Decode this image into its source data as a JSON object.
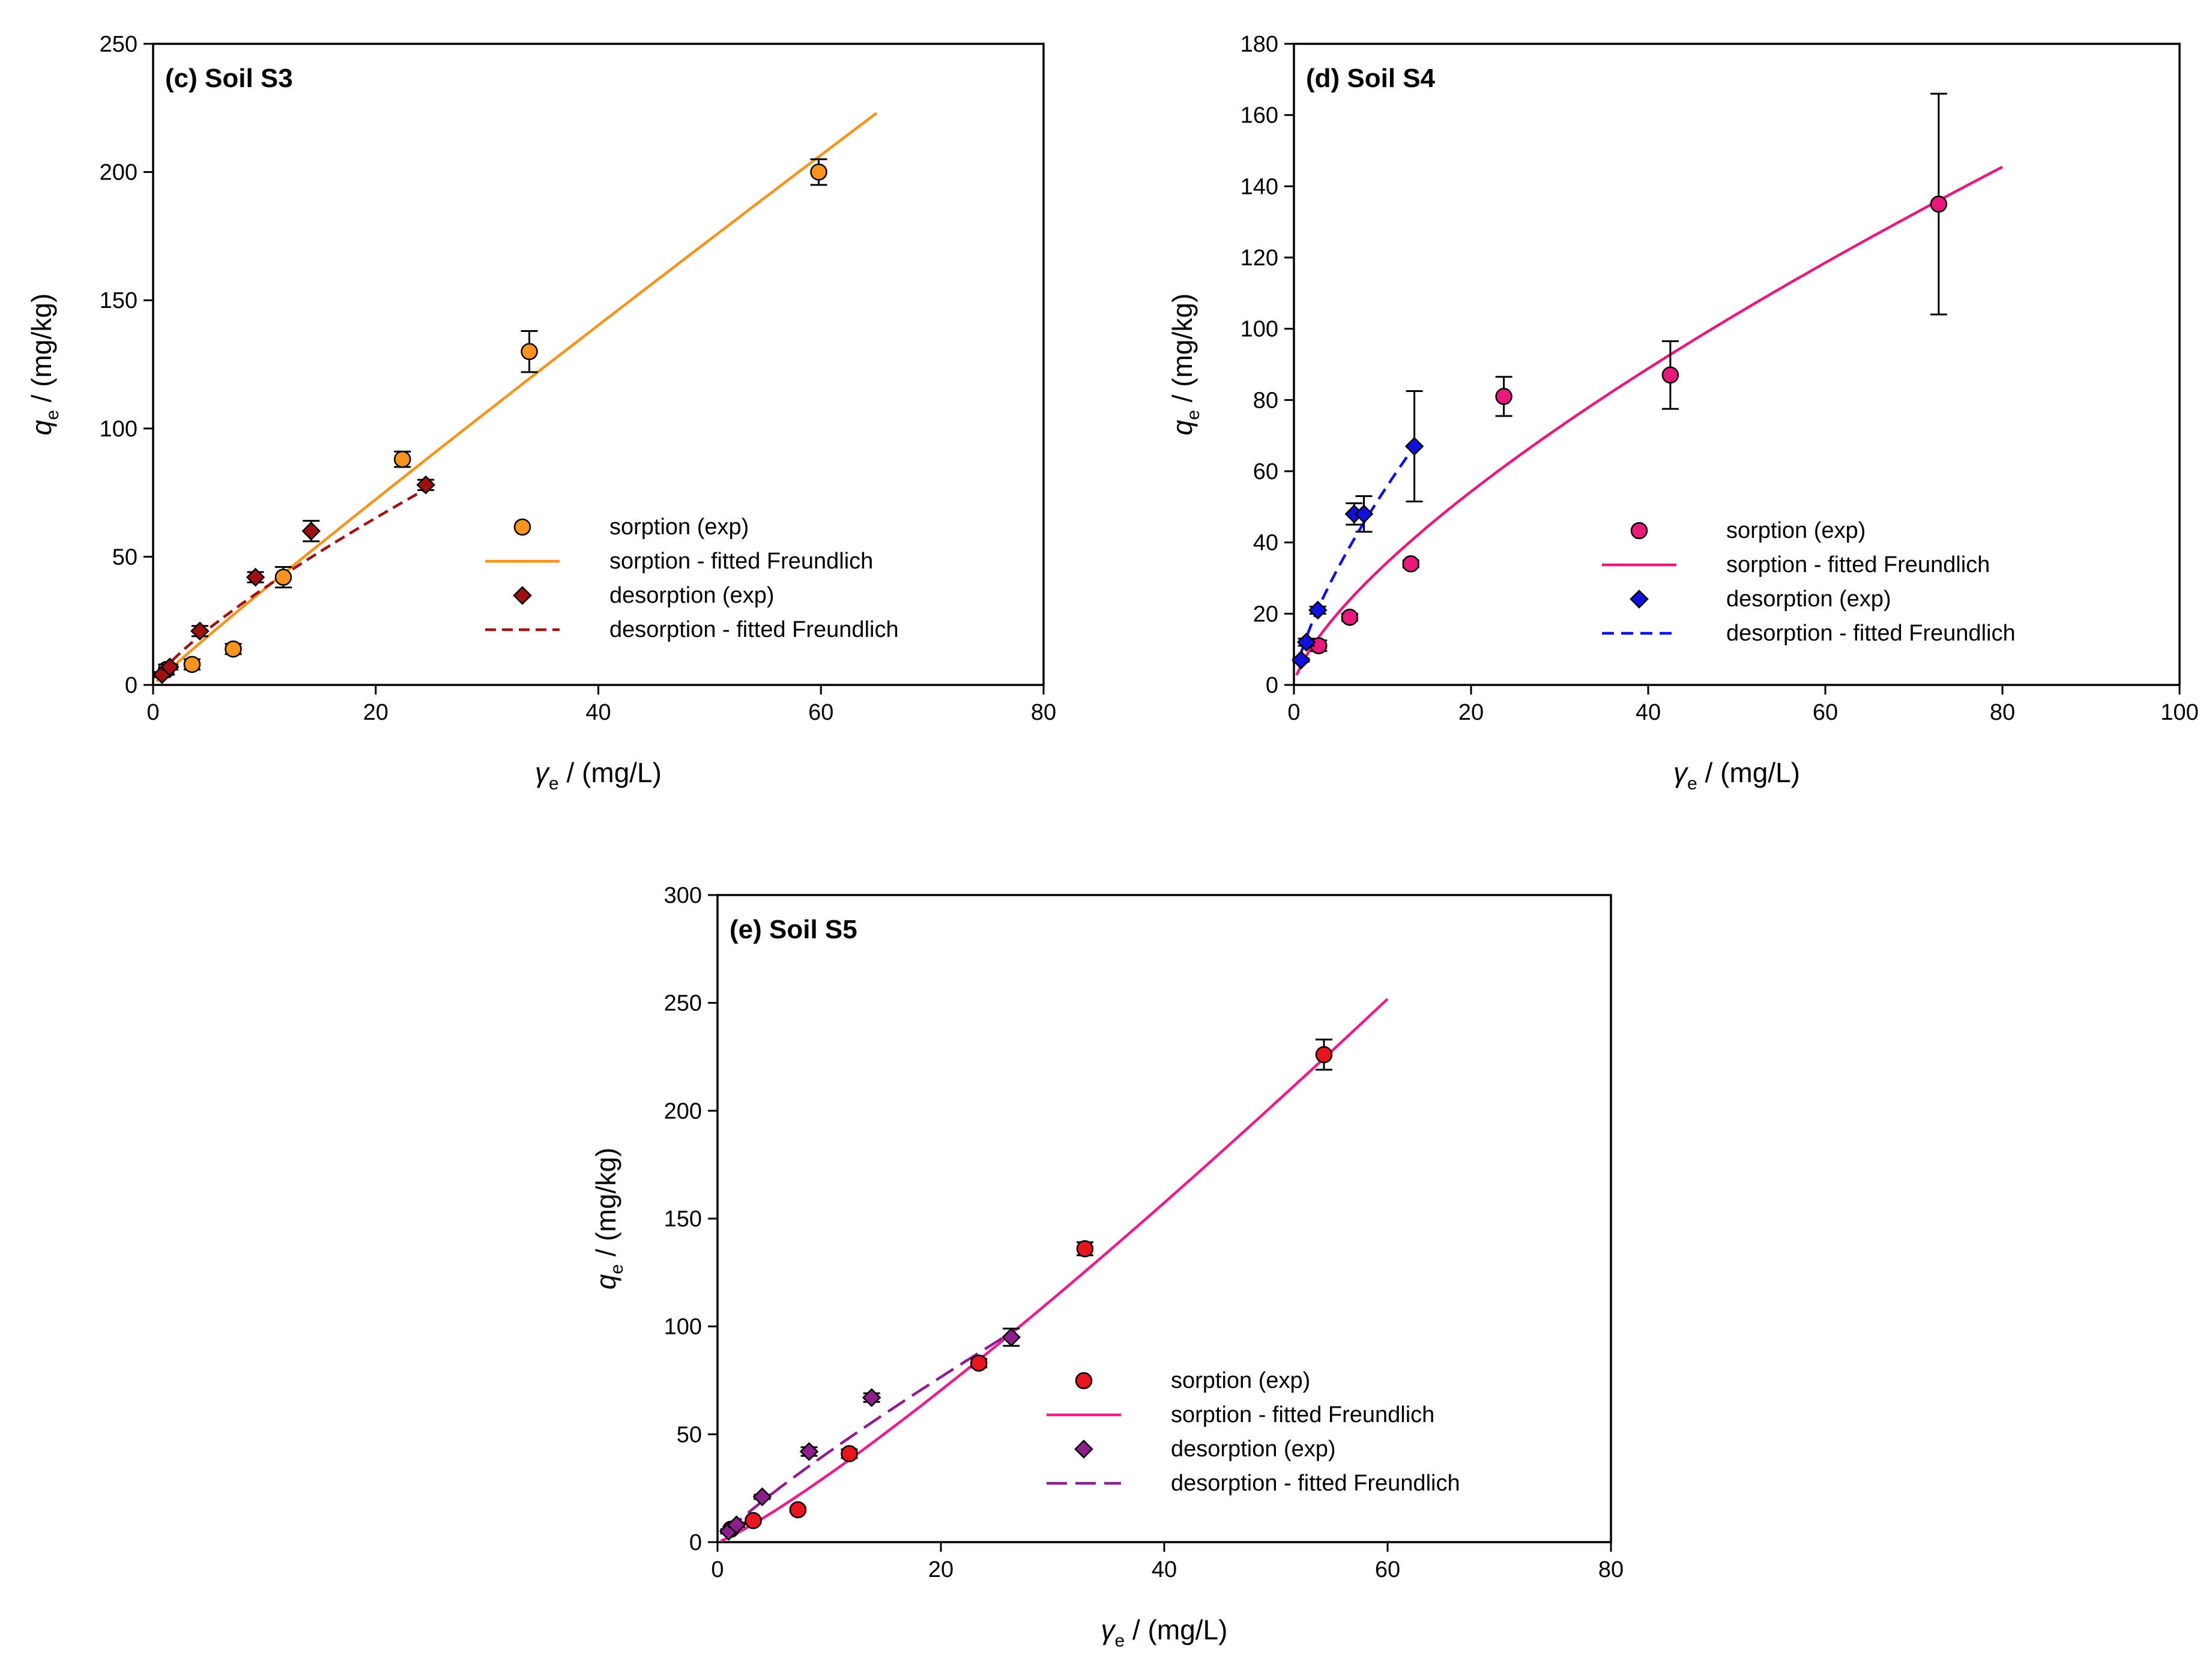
{
  "chart_data": [
    {
      "id": "s3",
      "type": "scatter",
      "title": "(c) Soil S3",
      "xlabel_symbol": "γ",
      "xlabel_sub": "e",
      "xlabel_unit": " / (mg/L)",
      "ylabel_symbol": "q",
      "ylabel_sub": "e",
      "ylabel_unit": " / (mg/kg)",
      "xlim": [
        0,
        80
      ],
      "ylim": [
        0,
        250
      ],
      "xticks": [
        0,
        20,
        40,
        60,
        80
      ],
      "yticks": [
        0,
        50,
        100,
        150,
        200,
        250
      ],
      "legend_position": "lower-right",
      "series": [
        {
          "name": "sorption (exp)",
          "kind": "points",
          "marker": "circle",
          "color": "#f7941d",
          "x": [
            1.2,
            3.5,
            7.2,
            11.7,
            22.4,
            33.8,
            59.8
          ],
          "y": [
            6,
            8,
            14,
            42,
            88,
            130,
            200
          ],
          "err": [
            2,
            2,
            2,
            4,
            3,
            8,
            5
          ]
        },
        {
          "name": "sorption - fitted Freundlich",
          "kind": "line",
          "dash": "",
          "color": "#f7941d",
          "x": [
            0.3,
            65
          ],
          "kf": 4.14,
          "n": 0.955
        },
        {
          "name": "desorption (exp)",
          "kind": "points",
          "marker": "diamond",
          "color": "#a01010",
          "x": [
            0.8,
            1.5,
            4.2,
            9.2,
            14.2,
            24.5
          ],
          "y": [
            4,
            7,
            21,
            42,
            60,
            78
          ],
          "err": [
            1,
            1,
            2,
            2,
            4,
            2
          ]
        },
        {
          "name": "desorption - fitted Freundlich",
          "kind": "line",
          "dash": "18,10",
          "color": "#a01010",
          "x": [
            0.7,
            24.5
          ],
          "kf": 6.2,
          "n": 0.785
        }
      ]
    },
    {
      "id": "s4",
      "type": "scatter",
      "title": "(d) Soil S4",
      "xlabel_symbol": "γ",
      "xlabel_sub": "e",
      "xlabel_unit": " / (mg/L)",
      "ylabel_symbol": "q",
      "ylabel_sub": "e",
      "ylabel_unit": " / (mg/kg)",
      "xlim": [
        0,
        100
      ],
      "ylim": [
        0,
        180
      ],
      "xticks": [
        0,
        20,
        40,
        60,
        80,
        100
      ],
      "yticks": [
        0,
        20,
        40,
        60,
        80,
        100,
        120,
        140,
        160,
        180
      ],
      "legend_position": "lower-right",
      "series": [
        {
          "name": "sorption (exp)",
          "kind": "points",
          "marker": "circle",
          "color": "#e8197a",
          "x": [
            2.8,
            6.3,
            13.2,
            23.7,
            42.5,
            72.8
          ],
          "y": [
            11,
            19,
            34,
            81,
            87,
            135
          ],
          "err": [
            1.5,
            1,
            1,
            5.5,
            9.5,
            31
          ]
        },
        {
          "name": "sorption - fitted Freundlich",
          "kind": "line",
          "dash": "",
          "color": "#e8197a",
          "x": [
            0.3,
            80
          ],
          "kf": 6.45,
          "n": 0.711
        },
        {
          "name": "desorption (exp)",
          "kind": "points",
          "marker": "diamond",
          "color": "#1010e0",
          "x": [
            0.8,
            1.4,
            2.7,
            6.8,
            7.9,
            13.6
          ],
          "y": [
            7,
            12,
            21,
            48,
            48,
            67
          ],
          "err": [
            0.5,
            1,
            1,
            3,
            5,
            15.5
          ]
        },
        {
          "name": "desorption - fitted Freundlich",
          "kind": "line",
          "dash": "20,12",
          "color": "#1010e0",
          "x": [
            0.8,
            13.6
          ],
          "kf": 10.5,
          "n": 0.71
        }
      ]
    },
    {
      "id": "s5",
      "type": "scatter",
      "title": "(e) Soil S5",
      "xlabel_symbol": "γ",
      "xlabel_sub": "e",
      "xlabel_unit": " / (mg/L)",
      "ylabel_symbol": "q",
      "ylabel_sub": "e",
      "ylabel_unit": " / (mg/kg)",
      "xlim": [
        0,
        80
      ],
      "ylim": [
        0,
        300
      ],
      "xticks": [
        0,
        20,
        40,
        60,
        80
      ],
      "yticks": [
        0,
        50,
        100,
        150,
        200,
        250,
        300
      ],
      "legend_position": "lower-right",
      "series": [
        {
          "name": "sorption (exp)",
          "kind": "points",
          "marker": "circle",
          "color": "#e8141e",
          "x": [
            1.2,
            3.2,
            7.2,
            11.8,
            23.4,
            32.9,
            54.3
          ],
          "y": [
            6,
            10,
            15,
            41,
            83,
            136,
            226
          ],
          "err": [
            1,
            1,
            1,
            2,
            2,
            3,
            7
          ]
        },
        {
          "name": "sorption - fitted Freundlich",
          "kind": "line",
          "dash": "",
          "color": "#ec1c8a",
          "x": [
            0.3,
            60
          ],
          "kf": 2.18,
          "n": 1.16
        },
        {
          "name": "desorption (exp)",
          "kind": "points",
          "marker": "diamond",
          "color": "#8e1e8e",
          "x": [
            1.0,
            1.7,
            4.0,
            8.2,
            13.8,
            26.3
          ],
          "y": [
            5,
            8,
            21,
            42,
            67,
            95
          ],
          "err": [
            1,
            1,
            1,
            2,
            2,
            4
          ]
        },
        {
          "name": "desorption - fitted Freundlich",
          "kind": "line",
          "dash": "34,14",
          "color": "#8e1e8e",
          "x": [
            0.8,
            25.5
          ],
          "kf": 5.65,
          "n": 0.87
        }
      ]
    }
  ]
}
